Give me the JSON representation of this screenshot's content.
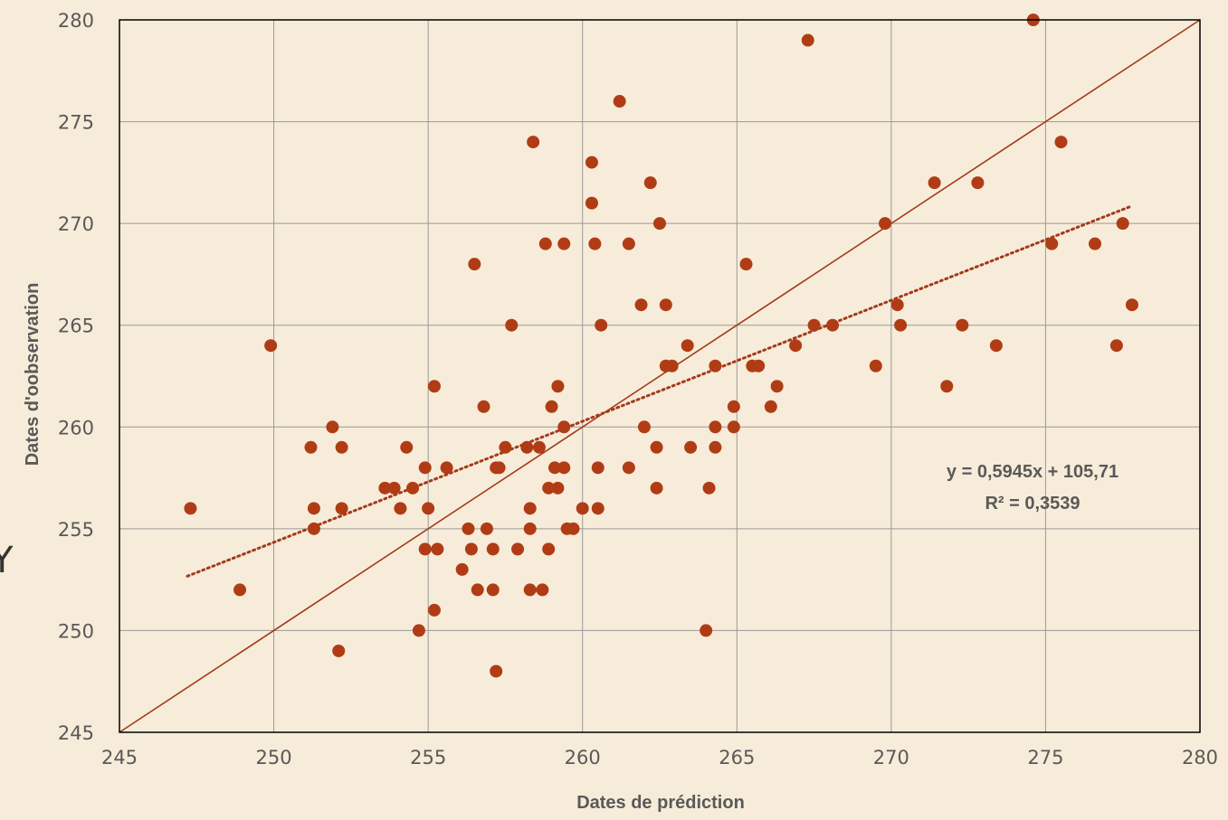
{
  "chart_data": {
    "type": "scatter",
    "title": "",
    "xlabel": "Dates de prédiction",
    "ylabel": "Dates d'oobservation",
    "xlim": [
      245,
      280
    ],
    "ylim": [
      245,
      280
    ],
    "xticks": [
      "245",
      "250",
      "255",
      "260",
      "265",
      "270",
      "275",
      "280"
    ],
    "yticks": [
      "245",
      "250",
      "255",
      "260",
      "265",
      "270",
      "275",
      "280"
    ],
    "grid": true,
    "legend": "none",
    "side_letter": "Y",
    "colors": {
      "marker": "#b03c16",
      "line": "#a33a1c",
      "grid": "#9a9a9a",
      "frame": "#000000",
      "background": "#f7ecd9"
    },
    "annotations": {
      "equation": "y = 0,5945x + 105,71",
      "r2": "R² = 0,3539"
    },
    "identity_line": [
      [
        245,
        245
      ],
      [
        280,
        280
      ]
    ],
    "trendline": {
      "slope": 0.5945,
      "intercept": 105.71,
      "x_range": [
        247.2,
        277.8
      ],
      "style": "dotted"
    },
    "series": [
      {
        "points": [
          [
            247.3,
            256
          ],
          [
            248.9,
            252
          ],
          [
            249.9,
            264
          ],
          [
            251.2,
            259
          ],
          [
            251.3,
            256
          ],
          [
            251.3,
            255
          ],
          [
            251.9,
            260
          ],
          [
            252.2,
            259
          ],
          [
            252.2,
            256
          ],
          [
            252.1,
            249
          ],
          [
            253.6,
            257
          ],
          [
            253.9,
            257
          ],
          [
            254.1,
            256
          ],
          [
            254.3,
            259
          ],
          [
            254.5,
            257
          ],
          [
            254.7,
            250
          ],
          [
            254.9,
            258
          ],
          [
            254.9,
            254
          ],
          [
            255.0,
            256
          ],
          [
            255.2,
            262
          ],
          [
            255.2,
            251
          ],
          [
            255.3,
            254
          ],
          [
            255.6,
            258
          ],
          [
            256.1,
            253
          ],
          [
            256.3,
            255
          ],
          [
            256.4,
            254
          ],
          [
            256.5,
            268
          ],
          [
            256.6,
            252
          ],
          [
            256.8,
            261
          ],
          [
            256.9,
            255
          ],
          [
            257.1,
            252
          ],
          [
            257.1,
            254
          ],
          [
            257.2,
            258
          ],
          [
            257.2,
            248
          ],
          [
            257.3,
            258
          ],
          [
            257.5,
            259
          ],
          [
            257.7,
            265
          ],
          [
            257.9,
            254
          ],
          [
            258.2,
            259
          ],
          [
            258.3,
            256
          ],
          [
            258.3,
            255
          ],
          [
            258.3,
            252
          ],
          [
            258.4,
            274
          ],
          [
            258.6,
            259
          ],
          [
            258.7,
            252
          ],
          [
            258.8,
            269
          ],
          [
            258.9,
            257
          ],
          [
            258.9,
            254
          ],
          [
            259.0,
            261
          ],
          [
            259.1,
            258
          ],
          [
            259.2,
            262
          ],
          [
            259.2,
            257
          ],
          [
            259.4,
            269
          ],
          [
            259.4,
            258
          ],
          [
            259.4,
            260
          ],
          [
            259.5,
            255
          ],
          [
            259.7,
            255
          ],
          [
            260.0,
            256
          ],
          [
            260.3,
            273
          ],
          [
            260.3,
            271
          ],
          [
            260.4,
            269
          ],
          [
            260.5,
            258
          ],
          [
            260.5,
            256
          ],
          [
            260.6,
            265
          ],
          [
            261.2,
            276
          ],
          [
            261.5,
            258
          ],
          [
            261.5,
            269
          ],
          [
            261.9,
            266
          ],
          [
            262.0,
            260
          ],
          [
            262.2,
            272
          ],
          [
            262.4,
            259
          ],
          [
            262.4,
            257
          ],
          [
            262.5,
            270
          ],
          [
            262.7,
            266
          ],
          [
            262.7,
            263
          ],
          [
            262.9,
            263
          ],
          [
            263.4,
            264
          ],
          [
            263.5,
            259
          ],
          [
            264.0,
            250
          ],
          [
            264.1,
            257
          ],
          [
            264.3,
            263
          ],
          [
            264.3,
            260
          ],
          [
            264.3,
            259
          ],
          [
            264.9,
            261
          ],
          [
            264.9,
            260
          ],
          [
            265.3,
            268
          ],
          [
            265.5,
            263
          ],
          [
            265.7,
            263
          ],
          [
            266.1,
            261
          ],
          [
            266.3,
            262
          ],
          [
            266.9,
            264
          ],
          [
            267.3,
            279
          ],
          [
            267.5,
            265
          ],
          [
            268.1,
            265
          ],
          [
            269.5,
            263
          ],
          [
            269.8,
            270
          ],
          [
            270.2,
            266
          ],
          [
            270.3,
            265
          ],
          [
            271.4,
            272
          ],
          [
            271.8,
            262
          ],
          [
            272.3,
            265
          ],
          [
            272.8,
            272
          ],
          [
            273.4,
            264
          ],
          [
            274.6,
            280
          ],
          [
            275.2,
            269
          ],
          [
            275.5,
            274
          ],
          [
            276.6,
            269
          ],
          [
            277.3,
            264
          ],
          [
            277.5,
            270
          ],
          [
            277.8,
            266
          ]
        ]
      }
    ]
  }
}
